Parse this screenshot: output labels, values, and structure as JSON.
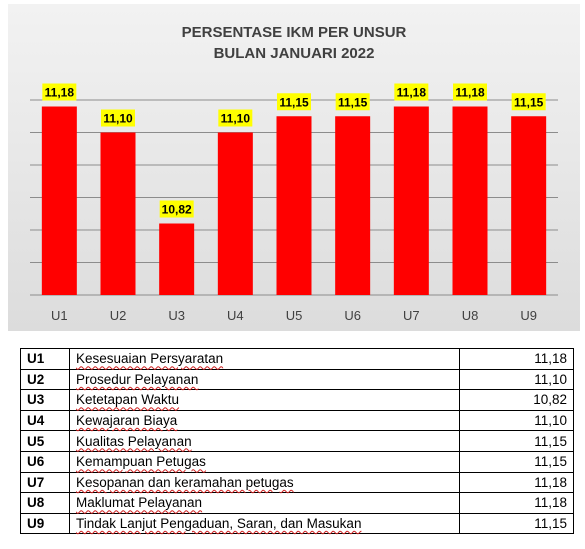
{
  "chart_data": {
    "type": "bar",
    "title": [
      "PERSENTASE IKM PER UNSUR",
      "BULAN JANUARI 2022"
    ],
    "categories": [
      "U1",
      "U2",
      "U3",
      "U4",
      "U5",
      "U6",
      "U7",
      "U8",
      "U9"
    ],
    "values": [
      11.18,
      11.1,
      10.82,
      11.1,
      11.15,
      11.15,
      11.18,
      11.18,
      11.15
    ],
    "data_labels": [
      "11,18",
      "11,10",
      "10,82",
      "11,10",
      "11,15",
      "11,15",
      "11,18",
      "11,18",
      "11,15"
    ],
    "ylim": [
      10.6,
      11.2
    ],
    "gridlines": [
      10.7,
      10.8,
      10.9,
      11.0,
      11.1,
      11.2
    ],
    "grid": true,
    "bar_color": "#ff0000",
    "label_bg": "#ffff00"
  },
  "table": {
    "rows": [
      {
        "code": "U1",
        "label": "Kesesuaian Persyaratan",
        "value": "11,18"
      },
      {
        "code": "U2",
        "label": "Prosedur Pelayanan",
        "value": "11,10"
      },
      {
        "code": "U3",
        "label": "Ketetapan Waktu",
        "value": "10,82"
      },
      {
        "code": "U4",
        "label": "Kewajaran Biaya",
        "value": "11,10"
      },
      {
        "code": "U5",
        "label": "Kualitas Pelayanan",
        "value": "11,15"
      },
      {
        "code": "U6",
        "label": "Kemampuan Petugas",
        "value": "11,15"
      },
      {
        "code": "U7",
        "label": "Kesopanan dan keramahan petugas",
        "value": "11,18"
      },
      {
        "code": "U8",
        "label": "Maklumat Pelayanan",
        "value": "11,18"
      },
      {
        "code": "U9",
        "label": "Tindak Lanjut Pengaduan, Saran, dan Masukan",
        "value": "11,15"
      }
    ]
  }
}
